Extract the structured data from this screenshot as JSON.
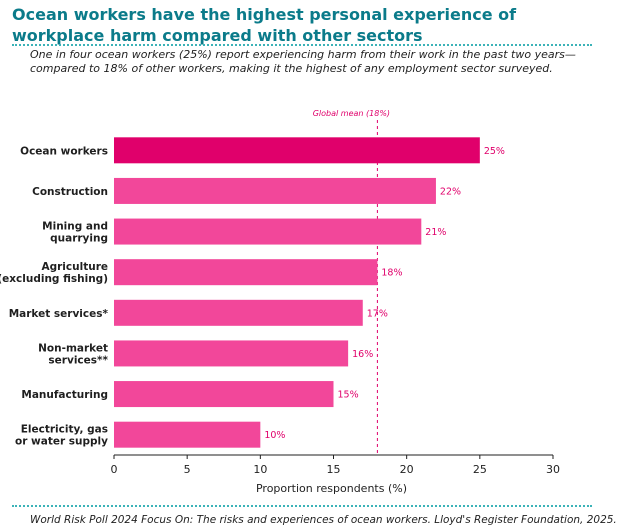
{
  "title": "Ocean workers have the highest personal experience of workplace harm compared with other sectors",
  "subtitle": "One in four ocean workers (25%) report experiencing harm from their work in the past two years—compared to 18% of other workers, making it the highest of any employment sector surveyed.",
  "source": "World Risk Poll 2024 Focus On: The risks and experiences of ocean workers. Lloyd's Register Foundation, 2025.",
  "colors": {
    "highlight": "#e0006b",
    "bar": "#f2479a",
    "title": "#0b7b8a",
    "dots": "#3bb3b8"
  },
  "chart_data": {
    "type": "bar",
    "orientation": "horizontal",
    "categories": [
      [
        "Ocean workers"
      ],
      [
        "Construction"
      ],
      [
        "Mining and",
        "quarrying"
      ],
      [
        "Agriculture",
        "(excluding fishing)"
      ],
      [
        "Market services*"
      ],
      [
        "Non-market",
        "services**"
      ],
      [
        "Manufacturing"
      ],
      [
        "Electricity, gas",
        "or water supply"
      ]
    ],
    "values": [
      25,
      22,
      21,
      18,
      17,
      16,
      15,
      10
    ],
    "value_labels": [
      "25%",
      "22%",
      "21%",
      "18%",
      "17%",
      "16%",
      "15%",
      "10%"
    ],
    "highlight_index": 0,
    "xlabel": "Proportion respondents (%)",
    "xlim": [
      0,
      30
    ],
    "xticks": [
      0,
      5,
      10,
      15,
      20,
      25,
      30
    ],
    "reference_line": {
      "value": 18,
      "label": "Global mean (18%)"
    },
    "grid": false
  }
}
